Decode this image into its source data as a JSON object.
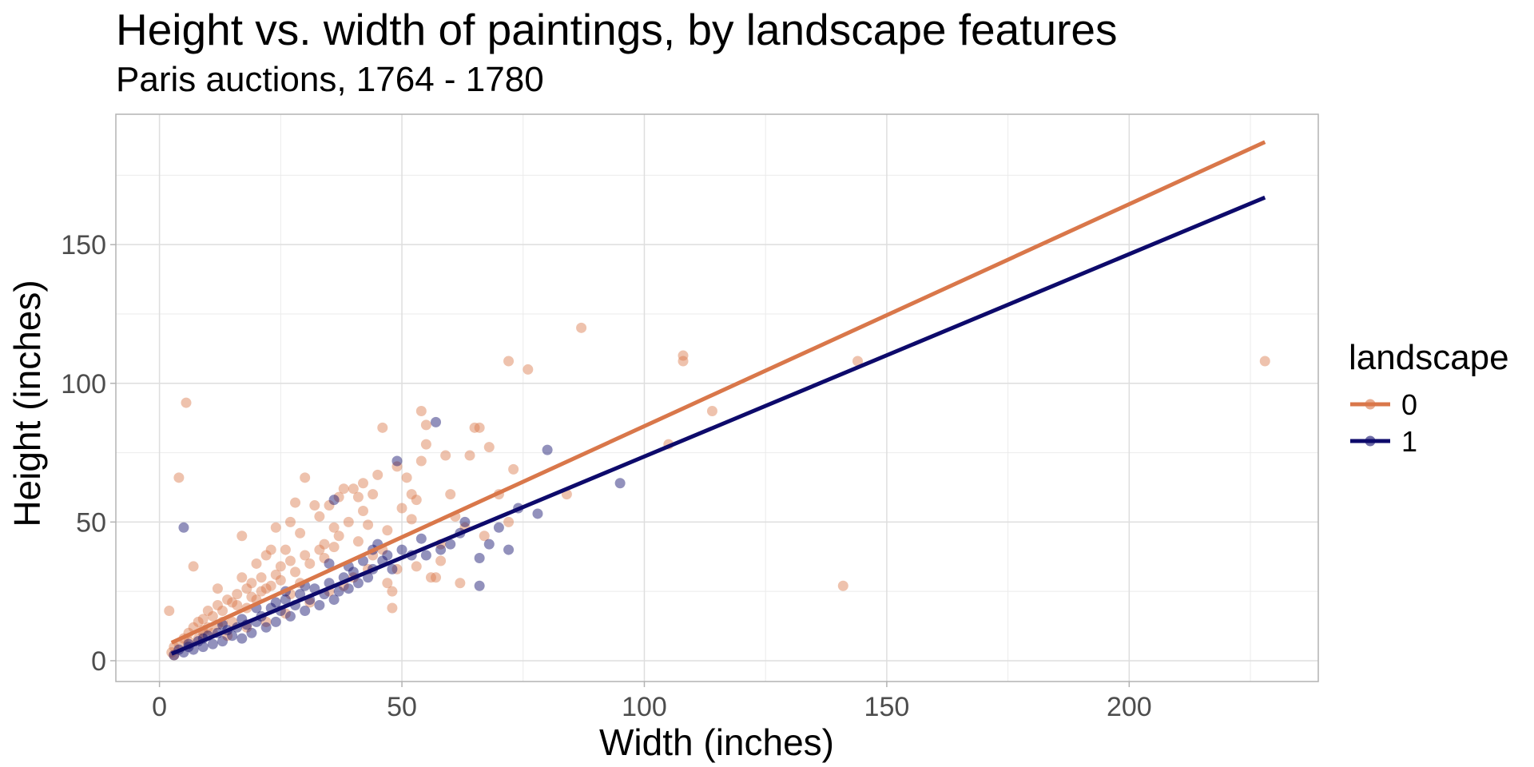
{
  "chart_data": {
    "type": "scatter",
    "title": "Height vs. width of paintings, by landscape features",
    "subtitle": "Paris auctions, 1764 - 1780",
    "xlabel": "Width (inches)",
    "ylabel": "Height (inches)",
    "xlim": [
      -9,
      239
    ],
    "ylim": [
      -7.5,
      197
    ],
    "x_ticks": [
      0,
      50,
      100,
      150,
      200
    ],
    "y_ticks": [
      0,
      50,
      100,
      150
    ],
    "grid": true,
    "legend": {
      "title": "landscape",
      "placement": "right"
    },
    "series": [
      {
        "name": "0",
        "color": "#d9774a",
        "fit_line": {
          "x": [
            2.5,
            228
          ],
          "y": [
            6.5,
            187
          ]
        },
        "points": [
          [
            228,
            108
          ],
          [
            144,
            108
          ],
          [
            141,
            27
          ],
          [
            114,
            90
          ],
          [
            108,
            110
          ],
          [
            108,
            108
          ],
          [
            105,
            78
          ],
          [
            87,
            120
          ],
          [
            84,
            60
          ],
          [
            76,
            105
          ],
          [
            73,
            69
          ],
          [
            72,
            108
          ],
          [
            72,
            50
          ],
          [
            70,
            60
          ],
          [
            68,
            77
          ],
          [
            66,
            84
          ],
          [
            65,
            84
          ],
          [
            64,
            74
          ],
          [
            63,
            48
          ],
          [
            60,
            60
          ],
          [
            58,
            42
          ],
          [
            57,
            30
          ],
          [
            56,
            30
          ],
          [
            55,
            85
          ],
          [
            55,
            78
          ],
          [
            54,
            90
          ],
          [
            54,
            72
          ],
          [
            53,
            58
          ],
          [
            52,
            60
          ],
          [
            51,
            66
          ],
          [
            50,
            55
          ],
          [
            49,
            33
          ],
          [
            48,
            25
          ],
          [
            48,
            19
          ],
          [
            46,
            84
          ],
          [
            46,
            40
          ],
          [
            45,
            67
          ],
          [
            44,
            60
          ],
          [
            43,
            49
          ],
          [
            42,
            54
          ],
          [
            41,
            59
          ],
          [
            40,
            62
          ],
          [
            40,
            30
          ],
          [
            39,
            50
          ],
          [
            38,
            62
          ],
          [
            37,
            45
          ],
          [
            36,
            48
          ],
          [
            35,
            56
          ],
          [
            34,
            42
          ],
          [
            33,
            40
          ],
          [
            32,
            56
          ],
          [
            31,
            35
          ],
          [
            30,
            66
          ],
          [
            30,
            38
          ],
          [
            29,
            46
          ],
          [
            28,
            57
          ],
          [
            27,
            36
          ],
          [
            27,
            24
          ],
          [
            26,
            40
          ],
          [
            25,
            34
          ],
          [
            24,
            48
          ],
          [
            24,
            31
          ],
          [
            23,
            40
          ],
          [
            22,
            38
          ],
          [
            22,
            26
          ],
          [
            21,
            30
          ],
          [
            20,
            35
          ],
          [
            20,
            22
          ],
          [
            19,
            28
          ],
          [
            18,
            26
          ],
          [
            18,
            19
          ],
          [
            17,
            45
          ],
          [
            17,
            30
          ],
          [
            16,
            24
          ],
          [
            15,
            21
          ],
          [
            15,
            14
          ],
          [
            14,
            22
          ],
          [
            13,
            18
          ],
          [
            13,
            14
          ],
          [
            12,
            26
          ],
          [
            12,
            20
          ],
          [
            11,
            16
          ],
          [
            11,
            10
          ],
          [
            10,
            18
          ],
          [
            10,
            12
          ],
          [
            9,
            15
          ],
          [
            9,
            10
          ],
          [
            8,
            14
          ],
          [
            8,
            8
          ],
          [
            7,
            12
          ],
          [
            7,
            34
          ],
          [
            6,
            10
          ],
          [
            6,
            7
          ],
          [
            5.5,
            93
          ],
          [
            4,
            66
          ],
          [
            5,
            8
          ],
          [
            4,
            6
          ],
          [
            3,
            5
          ],
          [
            2,
            18
          ],
          [
            2.5,
            3
          ],
          [
            3,
            2
          ],
          [
            58,
            36
          ],
          [
            53,
            34
          ],
          [
            47,
            28
          ],
          [
            43,
            33
          ],
          [
            38,
            27
          ],
          [
            35,
            25
          ],
          [
            31,
            21
          ],
          [
            26,
            17
          ],
          [
            22,
            14
          ],
          [
            18,
            12
          ],
          [
            14,
            9
          ],
          [
            62,
            28
          ],
          [
            44,
            38
          ],
          [
            36,
            41
          ],
          [
            28,
            32
          ],
          [
            25,
            29
          ],
          [
            21,
            25
          ],
          [
            19,
            23
          ],
          [
            16,
            20
          ],
          [
            67,
            45
          ],
          [
            61,
            52
          ],
          [
            52,
            51
          ],
          [
            47,
            47
          ],
          [
            41,
            43
          ],
          [
            34,
            37
          ],
          [
            29,
            28
          ],
          [
            23,
            27
          ],
          [
            12,
            13
          ],
          [
            9,
            11
          ],
          [
            59,
            74
          ],
          [
            49,
            70
          ],
          [
            42,
            64
          ],
          [
            37,
            59
          ],
          [
            33,
            52
          ],
          [
            27,
            50
          ]
        ]
      },
      {
        "name": "1",
        "color": "#0d0a6b",
        "fit_line": {
          "x": [
            2.5,
            228
          ],
          "y": [
            2.5,
            167
          ]
        },
        "points": [
          [
            95,
            64
          ],
          [
            80,
            76
          ],
          [
            78,
            53
          ],
          [
            74,
            55
          ],
          [
            72,
            40
          ],
          [
            70,
            48
          ],
          [
            66,
            27
          ],
          [
            66,
            37
          ],
          [
            62,
            46
          ],
          [
            60,
            42
          ],
          [
            57,
            86
          ],
          [
            55,
            38
          ],
          [
            54,
            44
          ],
          [
            52,
            38
          ],
          [
            50,
            40
          ],
          [
            49,
            72
          ],
          [
            48,
            33
          ],
          [
            46,
            36
          ],
          [
            45,
            42
          ],
          [
            44,
            33
          ],
          [
            43,
            30
          ],
          [
            42,
            36
          ],
          [
            41,
            28
          ],
          [
            40,
            32
          ],
          [
            39,
            26
          ],
          [
            38,
            30
          ],
          [
            37,
            25
          ],
          [
            36,
            58
          ],
          [
            36,
            22
          ],
          [
            35,
            28
          ],
          [
            34,
            24
          ],
          [
            33,
            20
          ],
          [
            32,
            26
          ],
          [
            31,
            22
          ],
          [
            30,
            18
          ],
          [
            29,
            24
          ],
          [
            28,
            20
          ],
          [
            27,
            16
          ],
          [
            26,
            22
          ],
          [
            25,
            18
          ],
          [
            24,
            14
          ],
          [
            23,
            19
          ],
          [
            22,
            12
          ],
          [
            21,
            16
          ],
          [
            20,
            14
          ],
          [
            19,
            10
          ],
          [
            18,
            13
          ],
          [
            17,
            8
          ],
          [
            16,
            12
          ],
          [
            15,
            9
          ],
          [
            14,
            11
          ],
          [
            13,
            7
          ],
          [
            12,
            10
          ],
          [
            11,
            6
          ],
          [
            10,
            9
          ],
          [
            9,
            5
          ],
          [
            8,
            7
          ],
          [
            7,
            4
          ],
          [
            6,
            6
          ],
          [
            5,
            48
          ],
          [
            5,
            3
          ],
          [
            4,
            4
          ],
          [
            3,
            2
          ],
          [
            68,
            42
          ],
          [
            63,
            50
          ],
          [
            58,
            40
          ],
          [
            47,
            38
          ],
          [
            44,
            40
          ],
          [
            39,
            34
          ],
          [
            35,
            35
          ],
          [
            30,
            27
          ],
          [
            26,
            25
          ],
          [
            24,
            21
          ],
          [
            20,
            19
          ],
          [
            17,
            15
          ],
          [
            13,
            13
          ],
          [
            9,
            8
          ],
          [
            6,
            5
          ]
        ]
      }
    ]
  }
}
